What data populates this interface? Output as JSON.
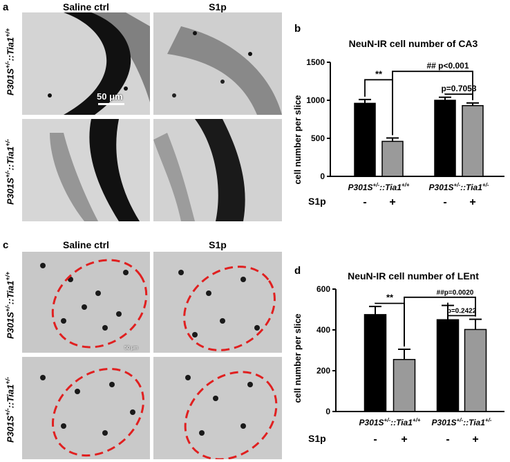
{
  "panels": {
    "a": {
      "letter": "a",
      "col_titles": [
        "Saline ctrl",
        "S1p"
      ],
      "row_labels": [
        {
          "prefix": "P301S",
          "sup1": "+/-",
          "mid": "::Tia1",
          "sup2": "+/+"
        },
        {
          "prefix": "P301S",
          "sup1": "+/-",
          "mid": "::Tia1",
          "sup2": "+/-"
        }
      ],
      "scalebar": "50 μm"
    },
    "c": {
      "letter": "c",
      "col_titles": [
        "Saline ctrl",
        "S1p"
      ],
      "row_labels": [
        {
          "prefix": "P301S",
          "sup1": "+/-",
          "mid": "::Tia1",
          "sup2": "+/+"
        },
        {
          "prefix": "P301S",
          "sup1": "+/-",
          "mid": "::Tia1",
          "sup2": "+/-"
        }
      ],
      "scalebar": "50 μm"
    }
  },
  "chart_data": [
    {
      "letter": "b",
      "type": "bar",
      "title": "NeuN-IR cell number of CA3",
      "ylabel": "cell number per slice",
      "ylim": [
        0,
        1500
      ],
      "yticks": [
        0,
        500,
        1000,
        1500
      ],
      "groups": [
        {
          "label": {
            "prefix": "P301S",
            "sup1": "+/-",
            "mid": "::Tia1",
            "sup2": "+/+"
          }
        },
        {
          "label": {
            "prefix": "P301S",
            "sup1": "+/-",
            "mid": "::Tia1",
            "sup2": "+/-"
          }
        }
      ],
      "treatment_label": "S1p",
      "treatment_marks": [
        "-",
        "+",
        "-",
        "+"
      ],
      "bars": [
        {
          "value": 960,
          "error": 50,
          "color": "#000000"
        },
        {
          "value": 460,
          "error": 45,
          "color": "#9a9a9a"
        },
        {
          "value": 1000,
          "error": 40,
          "color": "#000000"
        },
        {
          "value": 930,
          "error": 35,
          "color": "#9a9a9a"
        }
      ],
      "annotations": [
        {
          "text": "**",
          "from": 0,
          "to": 1,
          "level": 1270
        },
        {
          "text": "p=0.7053",
          "from": 2,
          "to": 3,
          "level": 1080
        },
        {
          "text": "## p<0.001",
          "from": 1,
          "to": 3,
          "level": 1380
        }
      ]
    },
    {
      "letter": "d",
      "type": "bar",
      "title": "NeuN-IR cell number of LEnt",
      "ylabel": "cell number per slice",
      "ylim": [
        0,
        600
      ],
      "yticks": [
        0,
        200,
        400,
        600
      ],
      "groups": [
        {
          "label": {
            "prefix": "P301S",
            "sup1": "+/-",
            "mid": "::Tia1",
            "sup2": "+/+"
          }
        },
        {
          "label": {
            "prefix": "P301S",
            "sup1": "+/-",
            "mid": "::Tia1",
            "sup2": "+/-"
          }
        }
      ],
      "treatment_label": "S1p",
      "treatment_marks": [
        "-",
        "+",
        "-",
        "+"
      ],
      "bars": [
        {
          "value": 475,
          "error": 40,
          "color": "#000000"
        },
        {
          "value": 255,
          "error": 50,
          "color": "#9a9a9a"
        },
        {
          "value": 450,
          "error": 70,
          "color": "#000000"
        },
        {
          "value": 402,
          "error": 50,
          "color": "#9a9a9a"
        }
      ],
      "annotations": [
        {
          "text": "**",
          "from": 0,
          "to": 1,
          "level": 530
        },
        {
          "text": "p=0.2422",
          "from": 2,
          "to": 3,
          "level": 470
        },
        {
          "text": "##p=0.0020",
          "from": 1,
          "to": 3,
          "level": 560
        }
      ]
    }
  ]
}
